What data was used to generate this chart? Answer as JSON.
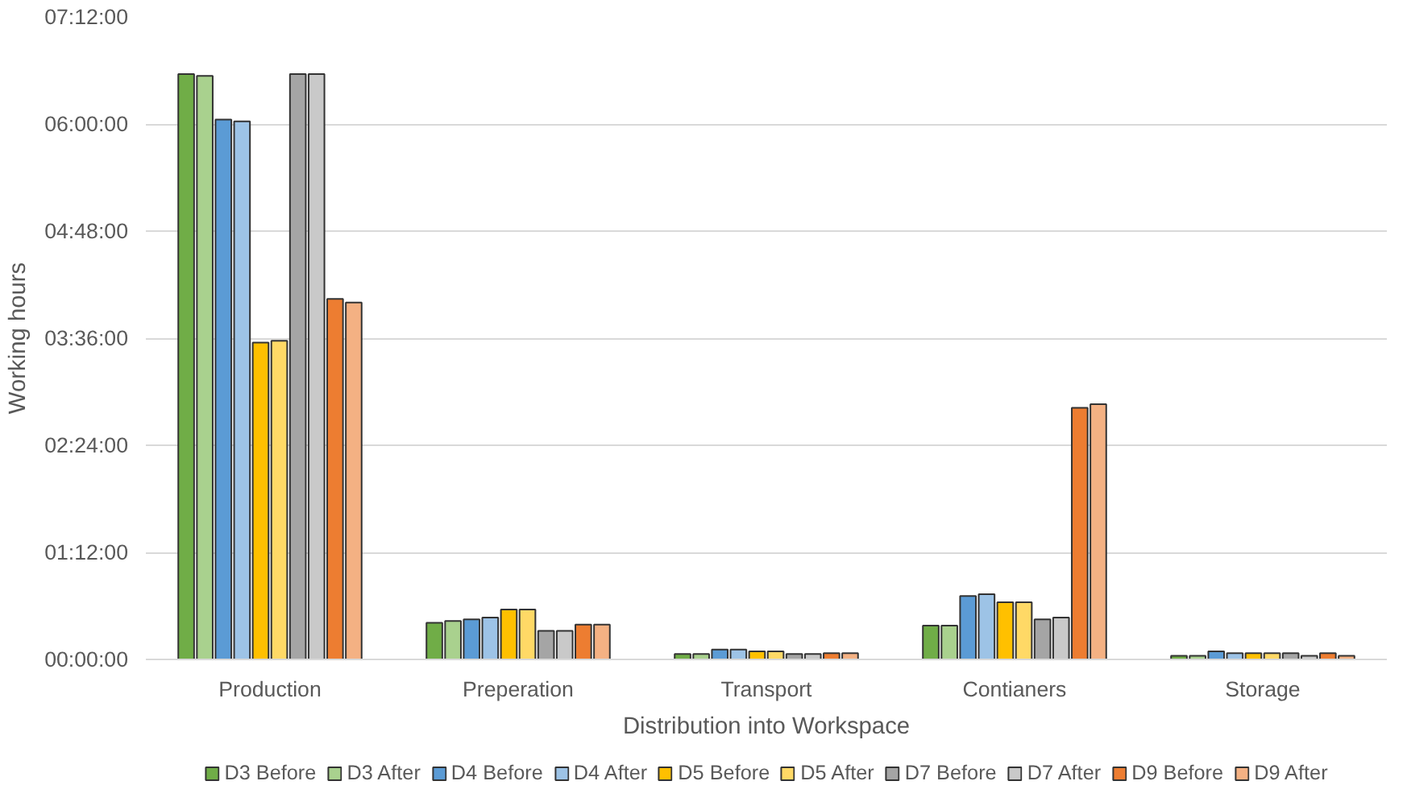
{
  "chart_data": {
    "type": "bar",
    "xlabel": "Distribution into Workspace",
    "ylabel": "Working hours",
    "categories": [
      "Production",
      "Preperation",
      "Transport",
      "Contianers",
      "Storage"
    ],
    "series": [
      {
        "name": "D3 Before",
        "color": "#70ad47",
        "values": [
          6.56,
          0.41,
          0.06,
          0.38,
          0.04
        ]
      },
      {
        "name": "D3 After",
        "color": "#a9d18e",
        "values": [
          6.54,
          0.43,
          0.06,
          0.38,
          0.04
        ]
      },
      {
        "name": "D4 Before",
        "color": "#5b9bd5",
        "values": [
          6.05,
          0.45,
          0.11,
          0.71,
          0.09
        ]
      },
      {
        "name": "D4 After",
        "color": "#9dc3e6",
        "values": [
          6.03,
          0.47,
          0.11,
          0.73,
          0.07
        ]
      },
      {
        "name": "D5 Before",
        "color": "#ffc000",
        "values": [
          3.55,
          0.56,
          0.09,
          0.64,
          0.07
        ]
      },
      {
        "name": "D5 After",
        "color": "#ffd966",
        "values": [
          3.57,
          0.56,
          0.09,
          0.64,
          0.07
        ]
      },
      {
        "name": "D7 Before",
        "color": "#a5a5a5",
        "values": [
          6.56,
          0.32,
          0.06,
          0.45,
          0.07
        ]
      },
      {
        "name": "D7 After",
        "color": "#c9c9c9",
        "values": [
          6.56,
          0.32,
          0.06,
          0.47,
          0.04
        ]
      },
      {
        "name": "D9 Before",
        "color": "#ed7d31",
        "values": [
          4.04,
          0.39,
          0.07,
          2.82,
          0.07
        ]
      },
      {
        "name": "D9 After",
        "color": "#f4b183",
        "values": [
          4.0,
          0.39,
          0.07,
          2.86,
          0.04
        ]
      }
    ],
    "ylim": [
      0,
      7.2
    ],
    "yticks": [
      {
        "value": 0,
        "label": "00:00:00"
      },
      {
        "value": 1.2,
        "label": "01:12:00"
      },
      {
        "value": 2.4,
        "label": "02:24:00"
      },
      {
        "value": 3.6,
        "label": "03:36:00"
      },
      {
        "value": 4.8,
        "label": "04:48:00"
      },
      {
        "value": 6.0,
        "label": "06:00:00"
      },
      {
        "value": 7.2,
        "label": "07:12:00"
      }
    ],
    "grid": "y",
    "legend": "bottom"
  }
}
